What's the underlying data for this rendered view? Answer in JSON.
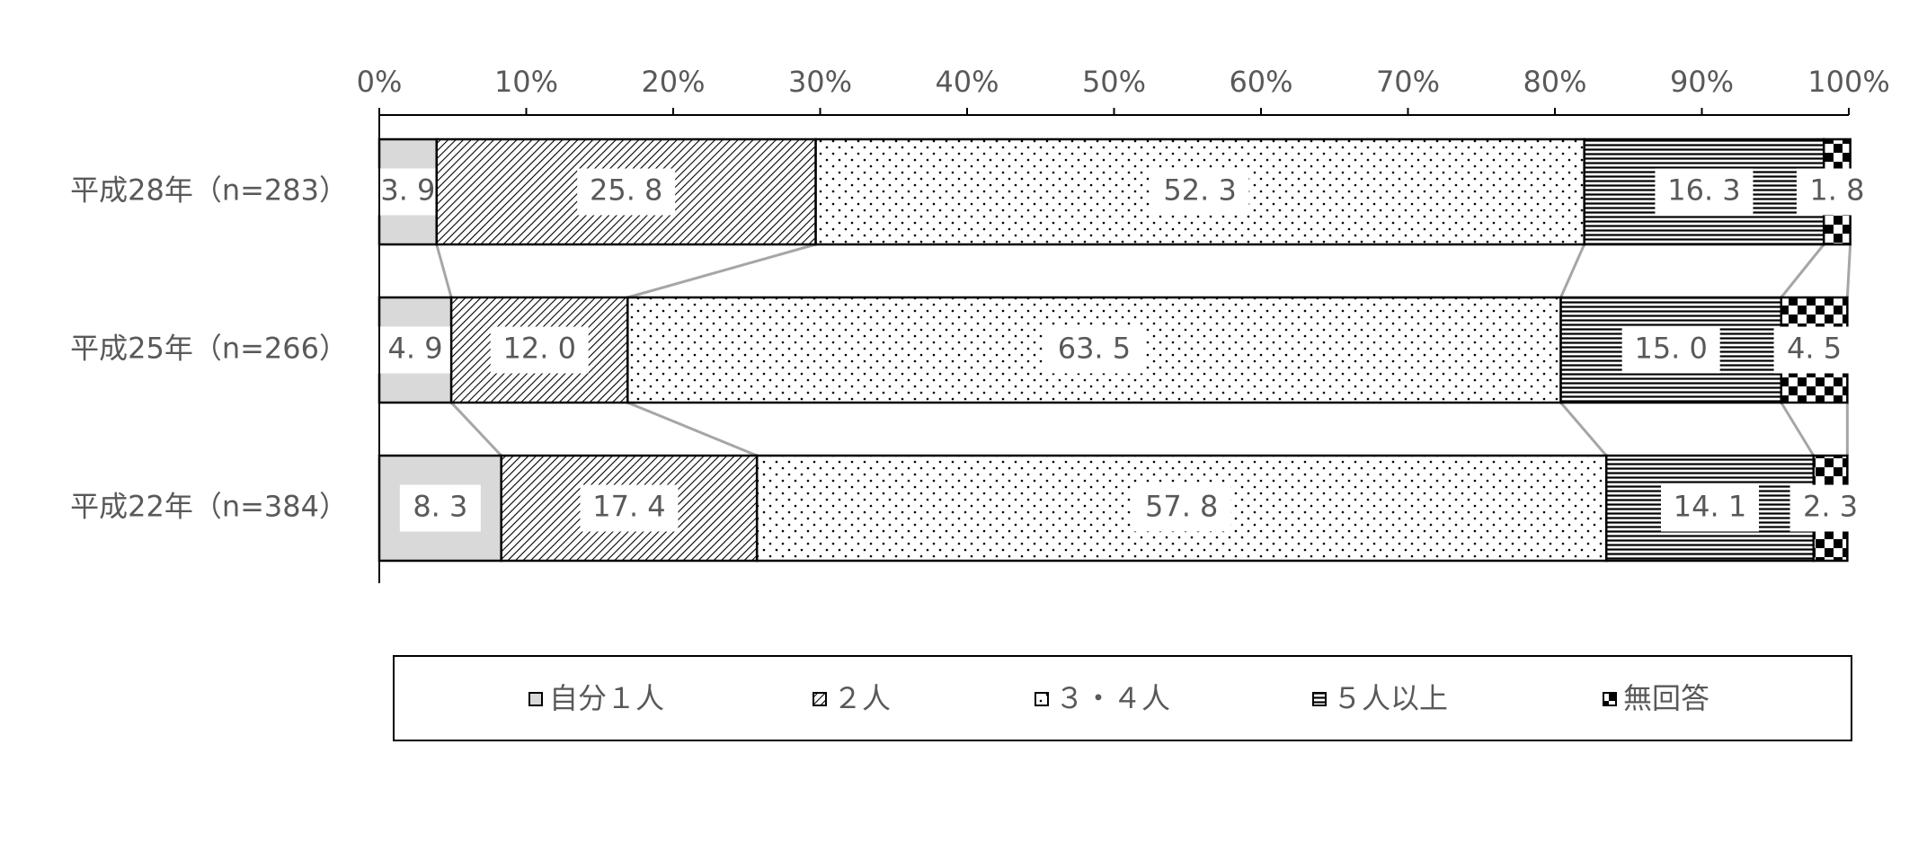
{
  "chart_data": {
    "type": "stacked-bar-100",
    "orientation": "horizontal",
    "categories": [
      "平成28年（n=283）",
      "平成25年（n=266）",
      "平成22年（n=384）"
    ],
    "series": [
      {
        "name": "自分１人",
        "color": "#d9d9d9",
        "pattern": "solid",
        "values": [
          3.9,
          4.9,
          8.3
        ],
        "value_labels": [
          "3. 9",
          "4. 9",
          "8. 3"
        ]
      },
      {
        "name": "２人",
        "color": "#000000",
        "pattern": "diagonal",
        "values": [
          25.8,
          12.0,
          17.4
        ],
        "value_labels": [
          "25. 8",
          "12. 0",
          "17. 4"
        ]
      },
      {
        "name": "３・４人",
        "color": "#000000",
        "pattern": "dots",
        "values": [
          52.3,
          63.5,
          57.8
        ],
        "value_labels": [
          "52. 3",
          "63. 5",
          "57. 8"
        ]
      },
      {
        "name": "５人以上",
        "color": "#000000",
        "pattern": "horizontal",
        "values": [
          16.3,
          15.0,
          14.1
        ],
        "value_labels": [
          "16. 3",
          "15. 0",
          "14. 1"
        ]
      },
      {
        "name": "無回答",
        "color": "#000000",
        "pattern": "checker",
        "values": [
          1.8,
          4.5,
          2.3
        ],
        "value_labels": [
          "1. 8",
          "4. 5",
          "2. 3"
        ]
      }
    ],
    "xlim": [
      0,
      100
    ],
    "xticks": [
      {
        "value": 0,
        "label": "0%"
      },
      {
        "value": 10,
        "label": "10%"
      },
      {
        "value": 20,
        "label": "20%"
      },
      {
        "value": 30,
        "label": "30%"
      },
      {
        "value": 40,
        "label": "40%"
      },
      {
        "value": 50,
        "label": "50%"
      },
      {
        "value": 60,
        "label": "60%"
      },
      {
        "value": 70,
        "label": "70%"
      },
      {
        "value": 80,
        "label": "80%"
      },
      {
        "value": 90,
        "label": "90%"
      },
      {
        "value": 100,
        "label": "100%"
      }
    ],
    "legend": "bottom"
  }
}
